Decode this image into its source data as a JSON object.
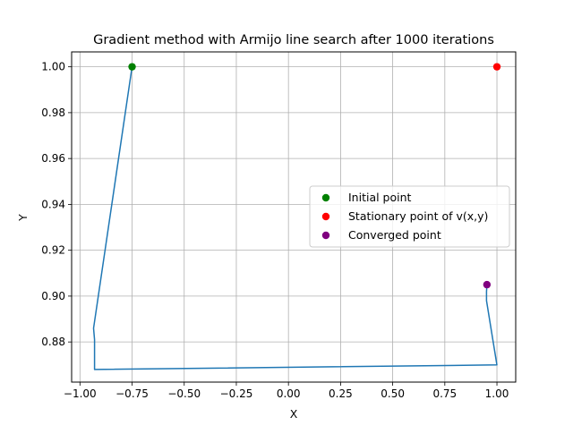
{
  "chart_data": {
    "type": "line",
    "title": "Gradient method with Armijo line search after 1000 iterations",
    "xlabel": "X",
    "ylabel": "Y",
    "xlim": [
      -1.04,
      1.09
    ],
    "ylim": [
      0.8625,
      1.0065
    ],
    "grid": true,
    "x_ticks": [
      -1.0,
      -0.75,
      -0.5,
      -0.25,
      0.0,
      0.25,
      0.5,
      0.75,
      1.0
    ],
    "x_tick_labels": [
      "−1.00",
      "−0.75",
      "−0.50",
      "−0.25",
      "0.00",
      "0.25",
      "0.50",
      "0.75",
      "1.00"
    ],
    "y_ticks": [
      0.88,
      0.9,
      0.92,
      0.94,
      0.96,
      0.98,
      1.0
    ],
    "y_tick_labels": [
      "0.88",
      "0.90",
      "0.92",
      "0.94",
      "0.96",
      "0.98",
      "1.00"
    ],
    "legend_position": "center-right",
    "series": [
      {
        "color": "#1f77b4",
        "x": [
          -0.75,
          -0.935,
          -0.93,
          -0.93,
          1.0,
          0.95,
          0.95,
          0.952
        ],
        "y": [
          1.0,
          0.886,
          0.881,
          0.868,
          0.87,
          0.898,
          0.902,
          0.905
        ]
      }
    ],
    "points": [
      {
        "name": "Initial point",
        "x": -0.75,
        "y": 1.0,
        "color": "#008000"
      },
      {
        "name": "Stationary point of v(x,y)",
        "x": 1.0,
        "y": 1.0,
        "color": "#ff0000"
      },
      {
        "name": "Converged point",
        "x": 0.952,
        "y": 0.905,
        "color": "#800080"
      }
    ]
  }
}
